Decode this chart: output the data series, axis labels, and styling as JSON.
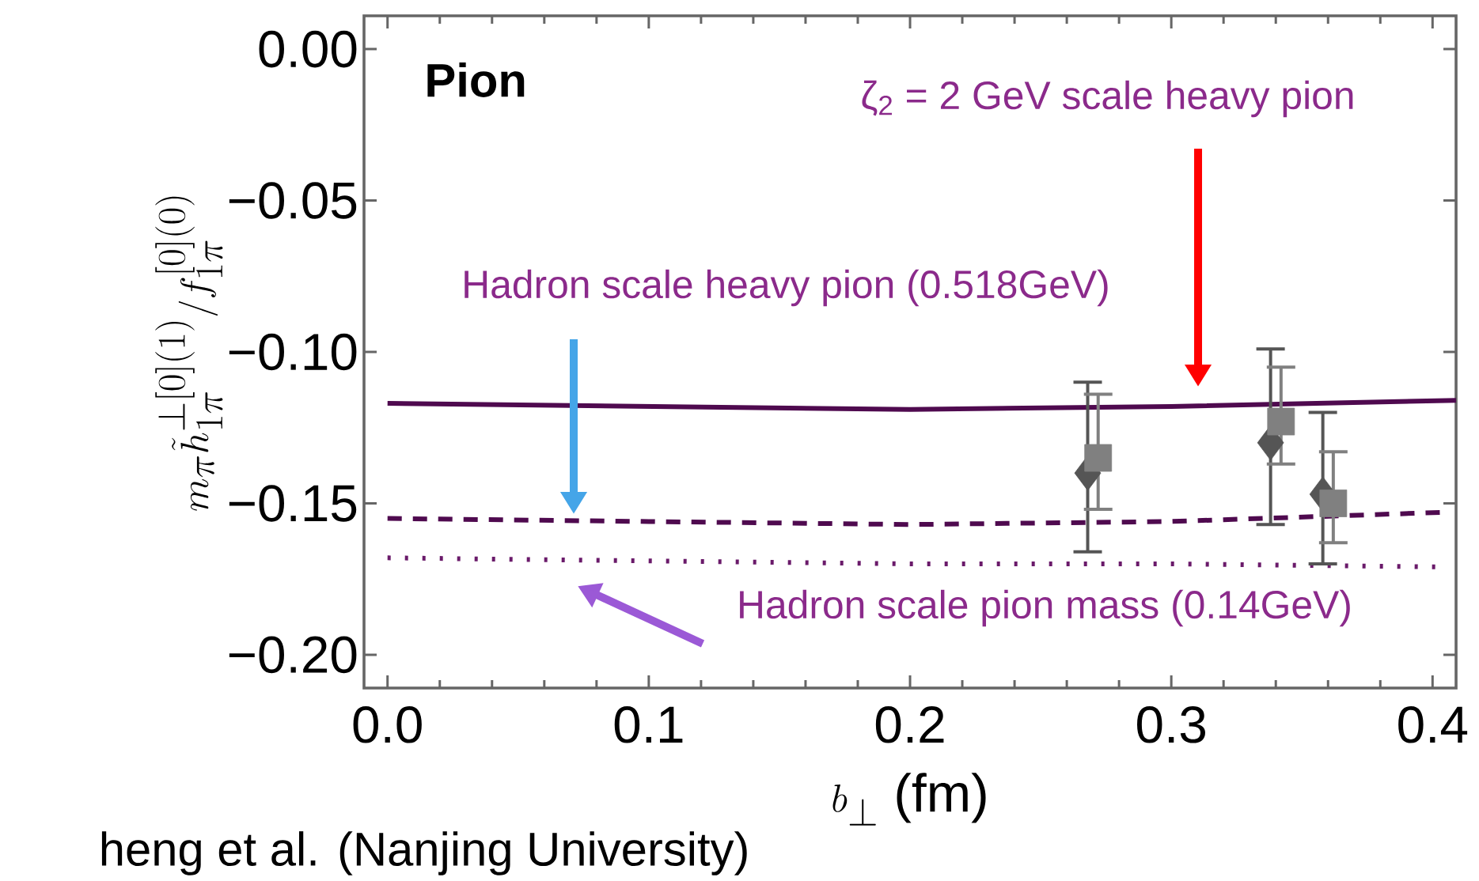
{
  "chart_data": {
    "type": "line",
    "xlabel": "b_{\\perp}\\ \\mbox{(fm)}",
    "ylabel": "m_{\\pi}\\tilde{h}_{1\\pi}^{\\perp[0](1)}/f_{1\\pi}^{[0](0)}",
    "xlim": [
      -0.009,
      0.409
    ],
    "ylim": [
      -0.211,
      0.011
    ],
    "xticks": [
      {
        "value": 0,
        "label": "0.0"
      },
      {
        "value": 0.1,
        "label": "0.1"
      },
      {
        "value": 0.2,
        "label": "0.2"
      },
      {
        "value": 0.3,
        "label": "0.3"
      },
      {
        "value": 0.4,
        "label": "0.4"
      }
    ],
    "yticks": [
      {
        "value": 0,
        "label": "0.00"
      },
      {
        "value": -0.05,
        "label": "−0.05"
      },
      {
        "value": -0.1,
        "label": "−0.10"
      },
      {
        "value": -0.15,
        "label": "−0.15"
      },
      {
        "value": -0.2,
        "label": "−0.20"
      }
    ],
    "series": [
      {
        "color": "#4f0a4f",
        "line_style": "solid",
        "x": [
          0,
          0.1,
          0.2,
          0.3,
          0.409
        ],
        "values": [
          -0.117,
          -0.118,
          -0.119,
          -0.118,
          -0.116
        ]
      },
      {
        "color": "#4f0a4f",
        "line_style": "dashed",
        "x": [
          0,
          0.1,
          0.2,
          0.3,
          0.403
        ],
        "values": [
          -0.155,
          -0.156,
          -0.157,
          -0.156,
          -0.153
        ]
      },
      {
        "color": "#6a1a6a",
        "line_style": "dotted",
        "x": [
          0,
          0.1,
          0.2,
          0.3,
          0.403
        ],
        "values": [
          -0.168,
          -0.169,
          -0.17,
          -0.17,
          -0.171
        ]
      },
      {
        "type": "scatter",
        "marker": "diamond",
        "color": "#555555",
        "x": [
          0.268,
          0.338,
          0.358
        ],
        "values": [
          -0.14,
          -0.13,
          -0.147
        ],
        "errors": [
          [
            -0.166,
            -0.11
          ],
          [
            -0.157,
            -0.099
          ],
          [
            -0.17,
            -0.12
          ]
        ]
      },
      {
        "type": "scatter",
        "marker": "square",
        "color": "#808080",
        "x": [
          0.272,
          0.342,
          0.362
        ],
        "values": [
          -0.135,
          -0.123,
          -0.15
        ],
        "errors": [
          [
            -0.152,
            -0.114
          ],
          [
            -0.137,
            -0.105
          ],
          [
            -0.163,
            -0.133
          ]
        ]
      }
    ],
    "annotations": [
      "**Pion**",
      "ζ$_{2}$ = 2 GeV scale heavy pion",
      "Hadron scale heavy pion (0.518GeV)",
      "Hadron scale pion mass (0.14GeV)",
      "heng et al. (Nanjing University)"
    ]
  }
}
